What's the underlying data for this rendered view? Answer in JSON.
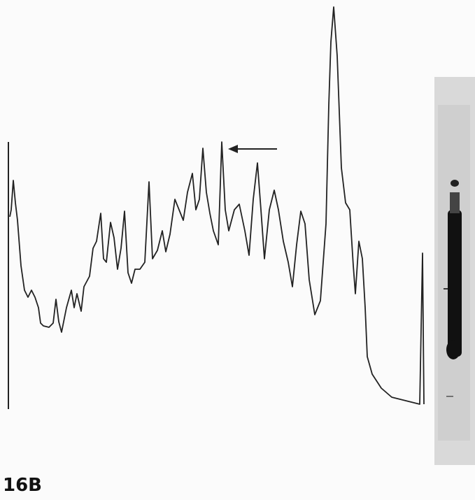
{
  "figure": {
    "label": "16B"
  }
}
